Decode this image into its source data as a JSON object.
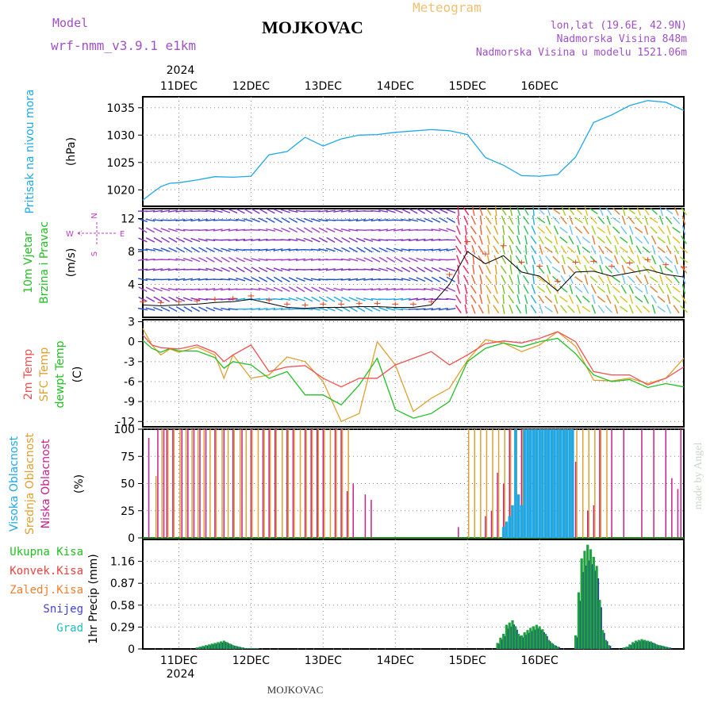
{
  "header": {
    "model_label": "Model",
    "model_name": "wrf-nmm_v3.9.1 e1km",
    "title": "MOJKOVAC",
    "subtitle": "Meteogram",
    "coords": "lon,lat (19.6E, 42.9N)",
    "elevation": "Nadmorska Visina 848m",
    "model_elevation": "Nadmorska Visina u modelu 1521.06m",
    "watermark": "made by Angel",
    "footer_station": "MOJKOVAC",
    "year": "2024"
  },
  "colors": {
    "pressure": "#1ea8e8",
    "wind_speed_label": "#22c022",
    "wind_dir_label": "#c040c0",
    "temp2m": "#f05050",
    "sfc_temp": "#e0a030",
    "dewpoint": "#22c022",
    "high_cloud": "#1ea8e8",
    "mid_cloud": "#e0a030",
    "low_cloud": "#c8208c",
    "total_precip": "#22c022",
    "conv_precip": "#f04040",
    "freezing_precip": "#f08030",
    "snow": "#4040e0",
    "hail": "#20c0c0"
  },
  "chart_data": [
    {
      "type": "line",
      "panel": "pressure",
      "title": "",
      "ylabel": "Pritisak na nivou mora",
      "yunit": "(hPa)",
      "ylim": [
        1017,
        1037
      ],
      "yticks": [
        1020,
        1025,
        1030,
        1035
      ],
      "x_hours": [
        0,
        3,
        6,
        9,
        12,
        18,
        24,
        30,
        36,
        42,
        48,
        54,
        60,
        66,
        72,
        78,
        84,
        96,
        102,
        108,
        114,
        120,
        126,
        132,
        138,
        144,
        150,
        156,
        162,
        168,
        174,
        180
      ],
      "series": [
        {
          "name": "",
          "values": [
            1018.1,
            1019.4,
            1020.6,
            1021.2,
            1021.3,
            1021.8,
            1022.4,
            1022.3,
            1022.5,
            1026.4,
            1027.0,
            1029.6,
            1028.0,
            1029.3,
            1030.0,
            1030.1,
            1030.5,
            1031.0,
            1030.8,
            1030.1,
            1025.9,
            1024.5,
            1022.6,
            1022.5,
            1022.8,
            1026.0,
            1032.3,
            1033.7,
            1035.4,
            1036.3,
            1036.0,
            1034.5
          ]
        }
      ]
    },
    {
      "type": "line",
      "panel": "wind",
      "ylabel_1": "10m Vjetar",
      "ylabel_2": "Brzina i Pravac",
      "yunit": "(m/s)",
      "ylim": [
        0,
        13.2
      ],
      "yticks": [
        4,
        8,
        12
      ],
      "compass": {
        "n": "N",
        "e": "E",
        "s": "S",
        "w": "W"
      },
      "x_hours": [
        0,
        6,
        12,
        18,
        24,
        30,
        36,
        42,
        48,
        54,
        60,
        66,
        72,
        78,
        84,
        90,
        96,
        102,
        108,
        114,
        120,
        126,
        132,
        138,
        144,
        150,
        156,
        162,
        168,
        174,
        180
      ],
      "series": [
        {
          "name": "",
          "values": [
            1.5,
            1.4,
            1.5,
            1.6,
            1.8,
            1.9,
            2.2,
            1.7,
            1.2,
            1.1,
            1.2,
            1.2,
            1.3,
            1.3,
            1.2,
            1.2,
            1.5,
            4.0,
            8.0,
            6.5,
            7.5,
            5.5,
            5.0,
            3.2,
            5.5,
            5.6,
            5.0,
            5.4,
            5.8,
            5.2,
            4.9
          ]
        }
      ]
    },
    {
      "type": "line",
      "panel": "temperature",
      "ylabel_1": "2m Temp",
      "ylabel_2": "SFC Temp",
      "ylabel_3": "dewpt Temp",
      "yunit": "(C)",
      "ylim": [
        -12.8,
        3.3
      ],
      "yticks": [
        3,
        0,
        -3,
        -6,
        -9,
        -12
      ],
      "x_hours": [
        0,
        3,
        6,
        9,
        12,
        18,
        24,
        27,
        30,
        36,
        42,
        48,
        54,
        60,
        66,
        72,
        78,
        84,
        90,
        96,
        102,
        108,
        114,
        120,
        126,
        132,
        138,
        144,
        150,
        156,
        162,
        168,
        174,
        180
      ],
      "series": [
        {
          "name": "",
          "values": [
            1.0,
            -0.5,
            -0.9,
            -1.0,
            -1.1,
            -0.5,
            -1.6,
            -3.0,
            -2.0,
            -0.5,
            -4.5,
            -3.8,
            -3.6,
            -5.5,
            -6.8,
            -5.5,
            -5.5,
            -3.5,
            -2.5,
            -1.5,
            -3.5,
            -2.0,
            -0.3,
            0.1,
            -0.2,
            0.5,
            1.5,
            0.0,
            -4.5,
            -5.0,
            -5.0,
            -6.5,
            -5.5,
            -3.8
          ]
        },
        {
          "name": "",
          "values": [
            2.0,
            -0.5,
            -2.0,
            -1.1,
            -1.6,
            -0.8,
            -2.0,
            -5.5,
            -2.0,
            -5.5,
            -5.0,
            -2.3,
            -3.0,
            -6.0,
            -12.0,
            -10.8,
            0.0,
            -3.5,
            -10.5,
            -8.5,
            -7.0,
            -2.8,
            0.3,
            -0.2,
            -1.5,
            -0.5,
            1.5,
            -0.7,
            -5.8,
            -5.9,
            -5.5,
            -6.3,
            -5.5,
            -2.5
          ]
        },
        {
          "name": "",
          "values": [
            0.2,
            -1.0,
            -1.6,
            -1.0,
            -1.4,
            -1.4,
            -2.4,
            -4.0,
            -3.0,
            -3.5,
            -5.5,
            -4.5,
            -8.0,
            -8.0,
            -9.5,
            -6.5,
            -2.5,
            -10.2,
            -11.5,
            -10.8,
            -9.0,
            -3.0,
            -1.0,
            -0.2,
            -0.8,
            0.0,
            0.5,
            -1.8,
            -5.0,
            -6.0,
            -5.7,
            -6.9,
            -6.3,
            -6.8
          ]
        }
      ]
    },
    {
      "type": "bar",
      "panel": "cloud",
      "ylabel_1": "Visoka Oblacnost",
      "ylabel_2": "Srednja Oblacnost",
      "ylabel_3": "Niska Oblacnost",
      "yunit": "(%)",
      "ylim": [
        0,
        100
      ],
      "yticks": [
        0,
        25,
        50,
        75,
        100
      ],
      "series": [
        {
          "name": "",
          "x_hours": [
            2,
            5,
            7,
            8,
            10,
            13,
            15,
            17,
            19,
            21,
            24,
            27,
            30,
            33,
            36,
            40,
            42,
            44,
            48,
            50,
            54,
            56,
            58,
            60,
            64,
            66,
            68,
            70,
            74,
            76,
            80,
            82,
            84,
            88,
            92,
            96,
            98,
            100,
            103,
            105,
            107,
            109,
            111,
            114,
            116,
            118,
            120,
            122,
            124,
            126,
            128,
            130,
            132,
            134,
            136,
            138,
            140,
            142,
            144,
            148,
            150,
            152,
            156,
            160,
            166,
            170,
            174,
            176,
            178,
            179
          ],
          "values": [
            92,
            100,
            100,
            100,
            100,
            100,
            100,
            100,
            100,
            100,
            100,
            100,
            100,
            100,
            100,
            100,
            100,
            100,
            100,
            100,
            100,
            100,
            100,
            100,
            100,
            100,
            43,
            50,
            40,
            35,
            0,
            0,
            0,
            0,
            0,
            0,
            0,
            0,
            0,
            10,
            0,
            0,
            0,
            20,
            25,
            60,
            50,
            100,
            100,
            100,
            100,
            100,
            100,
            100,
            100,
            100,
            100,
            100,
            70,
            25,
            30,
            100,
            100,
            100,
            100,
            100,
            100,
            55,
            45,
            100
          ]
        },
        {
          "name": "",
          "x_hours": [
            4,
            6,
            8,
            10,
            12,
            14,
            16,
            18,
            20,
            22,
            24,
            26,
            28,
            30,
            32,
            34,
            36,
            38,
            40,
            42,
            44,
            46,
            48,
            50,
            52,
            54,
            56,
            58,
            60,
            62,
            64,
            66,
            68,
            108,
            110,
            112,
            114,
            116,
            118,
            120,
            122,
            124,
            126,
            128,
            130,
            132,
            134,
            136,
            138,
            140,
            142,
            144,
            146,
            148,
            150,
            152,
            154
          ],
          "values": [
            57,
            100,
            100,
            100,
            100,
            100,
            100,
            100,
            100,
            100,
            100,
            100,
            100,
            100,
            100,
            100,
            100,
            100,
            100,
            100,
            100,
            100,
            100,
            100,
            100,
            100,
            100,
            100,
            100,
            100,
            100,
            100,
            100,
            100,
            100,
            100,
            100,
            100,
            100,
            100,
            100,
            100,
            100,
            100,
            100,
            100,
            100,
            100,
            100,
            100,
            100,
            100,
            100,
            100,
            100,
            100,
            100
          ]
        },
        {
          "name": "",
          "x_hours": [
            118,
            119,
            120,
            121,
            122,
            123,
            124,
            125,
            126,
            127,
            128,
            129,
            130,
            131,
            132,
            133,
            134,
            135,
            136,
            137,
            138,
            139,
            140,
            141,
            142,
            143,
            144,
            145,
            146,
            147,
            148
          ],
          "values": [
            0,
            0,
            10,
            15,
            20,
            30,
            100,
            40,
            30,
            100,
            100,
            100,
            100,
            100,
            100,
            100,
            100,
            100,
            100,
            100,
            100,
            100,
            100,
            100,
            100,
            100,
            0,
            0,
            0,
            0,
            0
          ]
        }
      ]
    },
    {
      "type": "bar",
      "panel": "precip",
      "ylabel": "1hr Precip",
      "yunit": "(mm)",
      "ylim": [
        0,
        1.45
      ],
      "yticks": [
        0,
        0.29,
        0.58,
        0.87,
        1.16
      ],
      "legend": [
        "Ukupna Kisa",
        "Konvek.Kisa",
        "Zaledj.Kisa",
        "Snijeg",
        "Grad"
      ],
      "x_hours": [
        18,
        19,
        20,
        21,
        22,
        23,
        24,
        25,
        26,
        27,
        28,
        29,
        30,
        31,
        32,
        33,
        34,
        35,
        36,
        37,
        38,
        118,
        119,
        120,
        121,
        122,
        123,
        124,
        125,
        126,
        127,
        128,
        129,
        130,
        131,
        132,
        133,
        134,
        135,
        136,
        137,
        138,
        144,
        145,
        146,
        147,
        148,
        149,
        150,
        151,
        152,
        153,
        154,
        155,
        160,
        161,
        162,
        163,
        164,
        165,
        166,
        167,
        168,
        169,
        170,
        171,
        172,
        173,
        174,
        175
      ],
      "series": [
        {
          "name": "",
          "values": [
            0.02,
            0.03,
            0.04,
            0.05,
            0.06,
            0.07,
            0.08,
            0.09,
            0.1,
            0.11,
            0.09,
            0.07,
            0.05,
            0.04,
            0.03,
            0.02,
            0.01,
            0.01,
            0.01,
            0.01,
            0.01,
            0.08,
            0.15,
            0.2,
            0.32,
            0.35,
            0.38,
            0.3,
            0.2,
            0.18,
            0.22,
            0.25,
            0.28,
            0.3,
            0.32,
            0.3,
            0.26,
            0.2,
            0.12,
            0.08,
            0.05,
            0.03,
            0.18,
            0.75,
            1.2,
            1.3,
            1.38,
            1.32,
            1.22,
            1.1,
            0.65,
            0.25,
            0.12,
            0.05,
            0.02,
            0.03,
            0.06,
            0.09,
            0.11,
            0.12,
            0.13,
            0.12,
            0.11,
            0.1,
            0.08,
            0.06,
            0.05,
            0.04,
            0.03,
            0.02
          ]
        }
      ]
    }
  ],
  "x_axis": {
    "start_hour_offset": 0,
    "day_labels_top": [
      "11DEC",
      "12DEC",
      "13DEC",
      "14DEC",
      "15DEC",
      "16DEC"
    ],
    "day_labels_bottom": [
      "11DEC",
      "12DEC",
      "13DEC",
      "14DEC",
      "15DEC",
      "16DEC"
    ]
  }
}
